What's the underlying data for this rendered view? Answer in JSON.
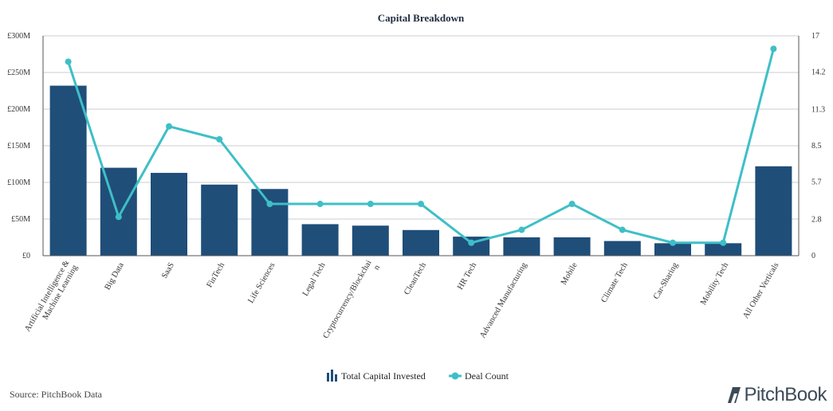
{
  "chart_data": {
    "type": "bar",
    "title": "Capital Breakdown",
    "categories": [
      "Artificial Intelligence & Machine Learning",
      "Big Data",
      "SaaS",
      "FinTech",
      "Life Sciences",
      "Legal Tech",
      "Cryptocurrency/Blockchain",
      "CleanTech",
      "HR Tech",
      "Advanced Manufacturing",
      "Mobile",
      "Climate Tech",
      "Car-Sharing",
      "Mobility Tech",
      "All Other Verticals"
    ],
    "category_label_lines": [
      [
        "Artificial Intelligence &",
        "Machine Learning"
      ],
      [
        "Big Data"
      ],
      [
        "SaaS"
      ],
      [
        "FinTech"
      ],
      [
        "Life Sciences"
      ],
      [
        "Legal Tech"
      ],
      [
        "Cryptocurrency/Blockchai",
        "n"
      ],
      [
        "CleanTech"
      ],
      [
        "HR Tech"
      ],
      [
        "Advanced Manufacturing"
      ],
      [
        "Mobile"
      ],
      [
        "Climate Tech"
      ],
      [
        "Car-Sharing"
      ],
      [
        "Mobility Tech"
      ],
      [
        "All Other Verticals"
      ]
    ],
    "series": [
      {
        "name": "Total Capital Invested",
        "type": "bar",
        "axis": "left",
        "color": "#1f4e79",
        "values": [
          232,
          120,
          113,
          97,
          91,
          43,
          41,
          35,
          26,
          25,
          25,
          20,
          17,
          17,
          122
        ]
      },
      {
        "name": "Deal Count",
        "type": "line",
        "axis": "right",
        "color": "#3ebfc7",
        "values": [
          15,
          3,
          10,
          9,
          4,
          4,
          4,
          4,
          1,
          2,
          4,
          2,
          1,
          1,
          16
        ]
      }
    ],
    "y_left": {
      "min": 0,
      "max": 300,
      "ticks": [
        0,
        50,
        100,
        150,
        200,
        250,
        300
      ],
      "tick_labels": [
        "£0",
        "£50M",
        "£100M",
        "£150M",
        "£200M",
        "£250M",
        "£300M"
      ]
    },
    "y_right": {
      "min": 0,
      "max": 17,
      "ticks": [
        0,
        2.8,
        5.7,
        8.5,
        11.3,
        14.2,
        17
      ],
      "tick_labels": [
        "0",
        "2.8",
        "5.7",
        "8.5",
        "11.3",
        "14.2",
        "17"
      ]
    },
    "grid": true,
    "legend_position": "bottom-center"
  },
  "footer": {
    "source": "Source: PitchBook Data",
    "logo_text": "PitchBook"
  }
}
